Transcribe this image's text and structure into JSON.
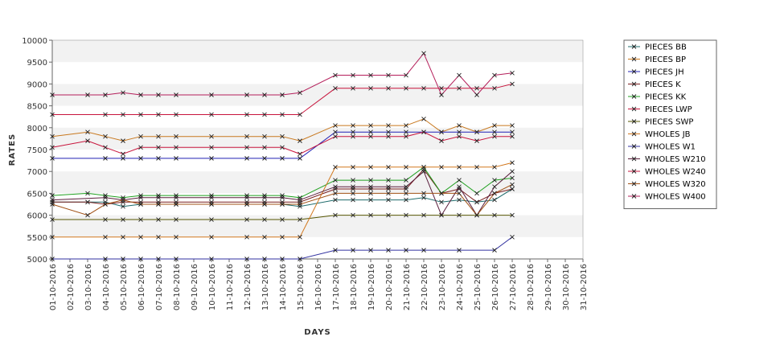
{
  "chart_data": {
    "type": "line",
    "xlabel": "DAYS",
    "ylabel": "RATES",
    "ylim": [
      5000,
      10000
    ],
    "yticks": [
      5000,
      5500,
      6000,
      6500,
      7000,
      7500,
      8000,
      8500,
      9000,
      9500,
      10000
    ],
    "grid": "alternating horizontal bands",
    "legend_position": "right",
    "categories": [
      "01-10-2016",
      "02-10-2016",
      "03-10-2016",
      "04-10-2016",
      "05-10-2016",
      "06-10-2016",
      "07-10-2016",
      "08-10-2016",
      "09-10-2016",
      "10-10-2016",
      "11-10-2016",
      "12-10-2016",
      "13-10-2016",
      "14-10-2016",
      "15-10-2016",
      "16-10-2016",
      "17-10-2016",
      "18-10-2016",
      "19-10-2016",
      "20-10-2016",
      "21-10-2016",
      "22-10-2016",
      "23-10-2016",
      "24-10-2016",
      "25-10-2016",
      "26-10-2016",
      "27-10-2016",
      "28-10-2016",
      "29-10-2016",
      "30-10-2016",
      "31-10-2016"
    ],
    "series": [
      {
        "name": "PIECES BB",
        "color": "#1e6b6b",
        "values": [
          6300,
          null,
          6300,
          6300,
          6200,
          6250,
          6250,
          6250,
          null,
          6250,
          null,
          6250,
          6250,
          6250,
          6200,
          null,
          6350,
          6350,
          6350,
          6350,
          6350,
          6400,
          6300,
          6350,
          6300,
          6350,
          6600,
          null,
          null,
          null,
          null
        ]
      },
      {
        "name": "PIECES BP",
        "color": "#c8781e",
        "values": [
          7800,
          null,
          7900,
          7800,
          7700,
          7800,
          7800,
          7800,
          null,
          7800,
          null,
          7800,
          7800,
          7800,
          7700,
          null,
          8050,
          8050,
          8050,
          8050,
          8050,
          8200,
          7900,
          8050,
          7900,
          8050,
          8050,
          null,
          null,
          null,
          null
        ]
      },
      {
        "name": "PIECES JH",
        "color": "#2020b4",
        "values": [
          7300,
          null,
          null,
          7300,
          7300,
          7300,
          7300,
          7300,
          null,
          7300,
          null,
          7300,
          7300,
          7300,
          7300,
          null,
          7900,
          7900,
          7900,
          7900,
          7900,
          7900,
          7900,
          7900,
          7900,
          7900,
          7900,
          null,
          null,
          null,
          null
        ]
      },
      {
        "name": "PIECES K",
        "color": "#7a1f1f",
        "values": [
          6300,
          null,
          6300,
          6250,
          6300,
          6300,
          6300,
          6300,
          null,
          6300,
          null,
          6300,
          6300,
          6300,
          6300,
          null,
          6600,
          6600,
          6600,
          6600,
          6600,
          7050,
          6500,
          6600,
          6300,
          6500,
          6600,
          null,
          null,
          null,
          null
        ]
      },
      {
        "name": "PIECES KK",
        "color": "#1fa01f",
        "values": [
          6450,
          null,
          6500,
          6450,
          6400,
          6450,
          6450,
          6450,
          null,
          6450,
          null,
          6450,
          6450,
          6450,
          6400,
          null,
          6800,
          6800,
          6800,
          6800,
          6800,
          7100,
          6500,
          6800,
          6500,
          6800,
          6850,
          null,
          null,
          null,
          null
        ]
      },
      {
        "name": "PIECES LWP",
        "color": "#c8143c",
        "values": [
          8300,
          null,
          null,
          8300,
          8300,
          8300,
          8300,
          8300,
          null,
          8300,
          null,
          8300,
          8300,
          8300,
          8300,
          null,
          8900,
          8900,
          8900,
          8900,
          8900,
          8900,
          8900,
          8900,
          8900,
          8900,
          9000,
          null,
          null,
          null,
          null
        ]
      },
      {
        "name": "PIECES SWP",
        "color": "#555500",
        "values": [
          5900,
          null,
          null,
          5900,
          5900,
          5900,
          5900,
          5900,
          null,
          5900,
          null,
          5900,
          5900,
          5900,
          5900,
          null,
          6000,
          6000,
          6000,
          6000,
          6000,
          6000,
          6000,
          6000,
          6000,
          6000,
          6000,
          null,
          null,
          null,
          null
        ]
      },
      {
        "name": "WHOLES JB",
        "color": "#d2781e",
        "values": [
          5500,
          null,
          null,
          5500,
          5500,
          5500,
          5500,
          5500,
          null,
          5500,
          null,
          5500,
          5500,
          5500,
          5500,
          null,
          7100,
          7100,
          7100,
          7100,
          7100,
          7100,
          7100,
          7100,
          7100,
          7100,
          7200,
          null,
          null,
          null,
          null
        ]
      },
      {
        "name": "WHOLES W1",
        "color": "#3232a0",
        "values": [
          5000,
          null,
          null,
          5000,
          5000,
          5000,
          5000,
          5000,
          null,
          5000,
          null,
          5000,
          5000,
          5000,
          5000,
          null,
          5200,
          5200,
          5200,
          5200,
          5200,
          5200,
          null,
          5200,
          null,
          5200,
          5500,
          null,
          null,
          null,
          null
        ]
      },
      {
        "name": "WHOLES W210",
        "color": "#5a1e3c",
        "values": [
          6350,
          null,
          null,
          6400,
          6350,
          6400,
          6400,
          6400,
          null,
          6400,
          null,
          6400,
          6400,
          6400,
          6350,
          null,
          6650,
          6650,
          6650,
          6650,
          6650,
          7000,
          6000,
          6650,
          6000,
          6650,
          7000,
          null,
          null,
          null,
          null
        ]
      },
      {
        "name": "WHOLES W240",
        "color": "#c8143c",
        "values": [
          7550,
          null,
          7700,
          7550,
          7400,
          7550,
          7550,
          7550,
          null,
          7550,
          null,
          7550,
          7550,
          7550,
          7400,
          null,
          7800,
          7800,
          7800,
          7800,
          7800,
          7900,
          7700,
          7800,
          7700,
          7800,
          7800,
          null,
          null,
          null,
          null
        ]
      },
      {
        "name": "WHOLES W320",
        "color": "#a05014",
        "values": [
          6250,
          null,
          6000,
          6250,
          6350,
          6250,
          6250,
          6250,
          null,
          6250,
          null,
          6250,
          6250,
          6250,
          6250,
          null,
          6500,
          6500,
          6500,
          6500,
          6500,
          6500,
          6500,
          6500,
          6000,
          6500,
          6700,
          null,
          null,
          null,
          null
        ]
      },
      {
        "name": "WHOLES W400",
        "color": "#b41e5a",
        "values": [
          8750,
          null,
          8750,
          8750,
          8800,
          8750,
          8750,
          8750,
          null,
          8750,
          null,
          8750,
          8750,
          8750,
          8800,
          null,
          9200,
          9200,
          9200,
          9200,
          9200,
          9700,
          8750,
          9200,
          8750,
          9200,
          9250,
          null,
          null,
          null,
          null
        ]
      }
    ]
  }
}
